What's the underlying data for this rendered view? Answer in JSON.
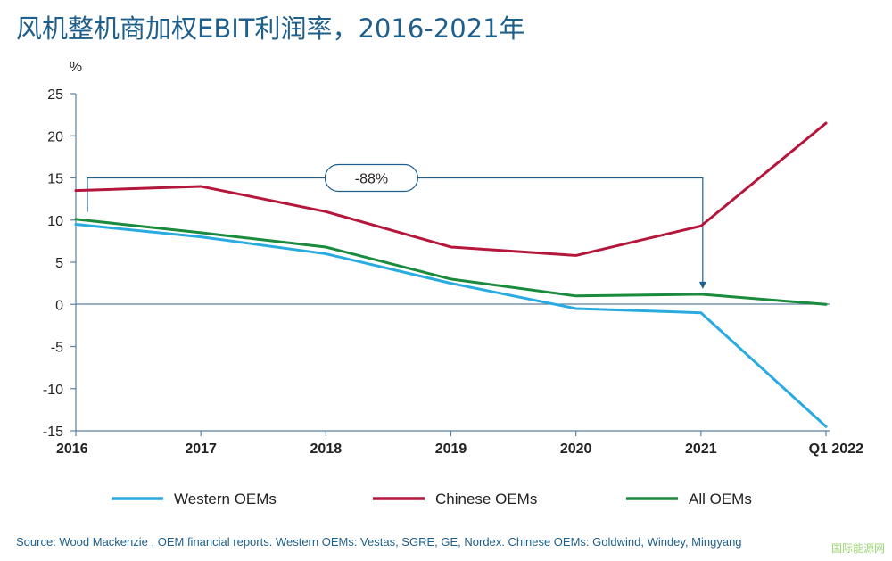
{
  "chart_data": {
    "type": "line",
    "title": "风机整机商加权EBIT利润率，2016-2021年",
    "ylabel": "%",
    "xlabel": "",
    "categories": [
      "2016",
      "2017",
      "2018",
      "2019",
      "2020",
      "2021",
      "Q1 2022"
    ],
    "ylim": [
      -15,
      25
    ],
    "yticks": [
      25,
      20,
      15,
      10,
      5,
      0,
      -5,
      -10,
      -15
    ],
    "grid": false,
    "legend_position": "bottom",
    "series": [
      {
        "name": "Western OEMs",
        "color": "#29abe2",
        "values": [
          9.5,
          8.0,
          6.0,
          2.5,
          -0.5,
          -1.0,
          -14.5
        ]
      },
      {
        "name": "Chinese OEMs",
        "color": "#b5163b",
        "values": [
          13.5,
          14.0,
          11.0,
          6.8,
          5.8,
          9.3,
          21.5
        ]
      },
      {
        "name": "All OEMs",
        "color": "#1a8a3c",
        "values": [
          10.1,
          8.5,
          6.8,
          3.0,
          1.0,
          1.2,
          0.0
        ]
      }
    ],
    "annotation": {
      "text": "-88%",
      "from_category": "2016",
      "to_category": "2021",
      "level": 15
    }
  },
  "source_text": "Source: Wood Mackenzie , OEM financial reports. Western OEMs: Vestas, SGRE, GE, Nordex.  Chinese OEMs: Goldwind, Windey, Mingyang",
  "watermark_text": "国际能源网"
}
